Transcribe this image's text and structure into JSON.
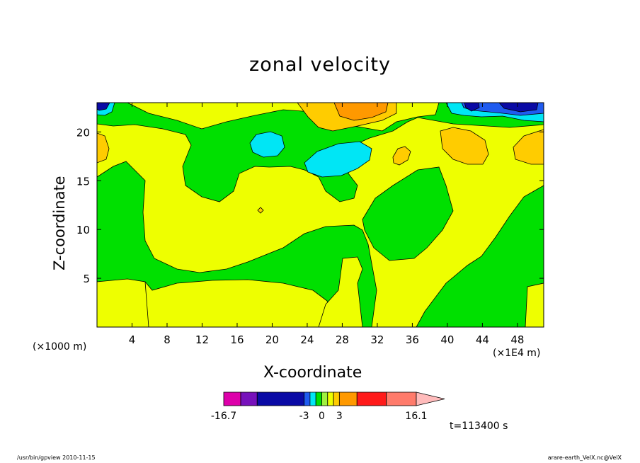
{
  "chart_data": {
    "type": "heatmap",
    "title": "zonal velocity",
    "xlabel": "X-coordinate",
    "ylabel": "Z-coordinate",
    "x_unit_note": "(×1000 m)",
    "x_scale_note": "(×1E4 m)",
    "xlim": [
      0,
      51
    ],
    "ylim": [
      0,
      23
    ],
    "x_ticks": [
      4,
      8,
      12,
      16,
      20,
      24,
      28,
      32,
      36,
      40,
      44,
      48
    ],
    "y_ticks": [
      5,
      10,
      15,
      20
    ],
    "colorbar": {
      "ticks": [
        "-16.7",
        "-3",
        "0",
        "3",
        "16.1"
      ],
      "levels": [
        -16.7,
        -13.8,
        -11.0,
        -3,
        -2,
        -1,
        0,
        1,
        2,
        3,
        6,
        11,
        16.1
      ],
      "colors": [
        "#dd00aa",
        "#7711bb",
        "#0a0aa5",
        "#1f5bf0",
        "#00e6f5",
        "#00e000",
        "#a0f040",
        "#eeff00",
        "#ffcc00",
        "#ff9900",
        "#ff1a1a",
        "#ff7b6b"
      ],
      "extend_color": "#ffbbbb"
    },
    "time_label": "t=113400 s"
  },
  "footer": {
    "left": "/usr/bin/gpview  2010-11-15",
    "right": "arare-earth_VelX.nc@VelX"
  }
}
